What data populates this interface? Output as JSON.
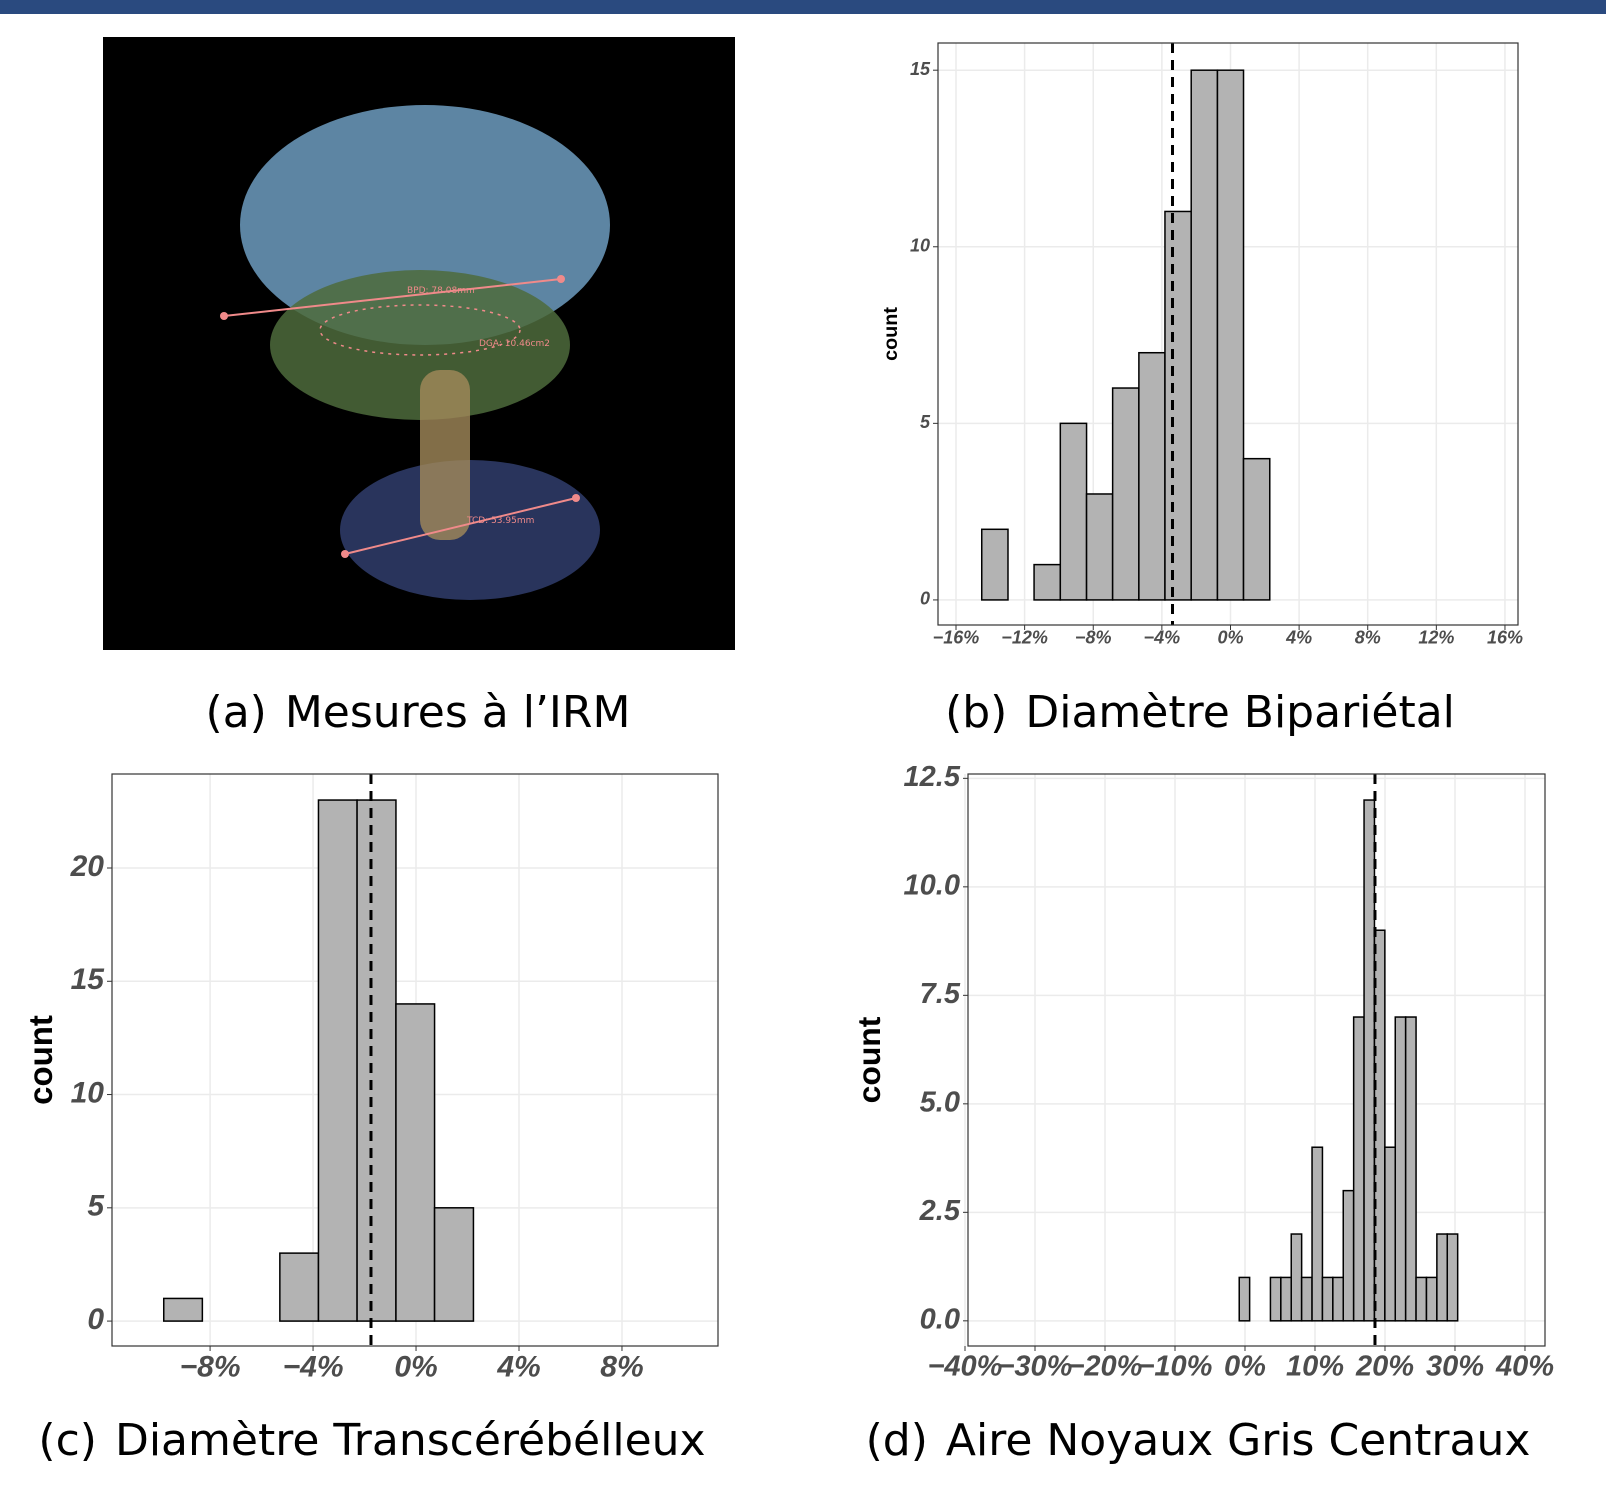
{
  "image_panel": {
    "caption_label": "(a)",
    "caption": "Mesures à l’IRM",
    "annotations": [
      "BPD: 78.08mm",
      "DGA: 10.46cm2",
      "TCD: 53.95mm"
    ]
  },
  "chart_data": [
    {
      "type": "histogram",
      "caption_label": "(b)",
      "caption": "Diamètre Bipariétal",
      "y_label": "count",
      "color": "#b3b3b3",
      "grid": true,
      "bins": [
        -14.5,
        -12.97,
        -11.45,
        -9.92,
        -8.39,
        -6.87,
        -5.34,
        -3.82,
        -2.29,
        -0.76,
        0.76,
        2.29,
        3.82,
        5.34,
        6.87,
        8.39,
        9.92,
        11.45,
        12.97,
        14.5
      ],
      "values": [
        2,
        0,
        1,
        5,
        3,
        6,
        7,
        11,
        15,
        15,
        4,
        0,
        0,
        0,
        0,
        0,
        0,
        0,
        0
      ],
      "vline": -3.38,
      "xlim": [
        -17.05,
        16.76
      ],
      "ylim": [
        -0.71,
        15.77
      ],
      "xticks": [
        {
          "value": -16,
          "label": "−16%"
        },
        {
          "value": -12,
          "label": "−12%"
        },
        {
          "value": -8,
          "label": "−8%"
        },
        {
          "value": -4,
          "label": "−4%"
        },
        {
          "value": 0,
          "label": "0%"
        },
        {
          "value": 4,
          "label": "4%"
        },
        {
          "value": 8,
          "label": "8%"
        },
        {
          "value": 12,
          "label": "12%"
        },
        {
          "value": 16,
          "label": "16%"
        }
      ],
      "yticks": [
        0,
        5,
        10,
        15
      ]
    },
    {
      "type": "histogram",
      "caption_label": "(c)",
      "caption": "Diamètre Transcérébélleux",
      "y_label": "count",
      "color": "#b3b3b3",
      "grid": true,
      "bins": [
        -9.8,
        -8.3,
        -6.79,
        -5.29,
        -3.79,
        -2.29,
        -0.78,
        0.72,
        2.23,
        3.73,
        5.23,
        6.73,
        8.24,
        9.74
      ],
      "values": [
        1,
        0,
        0,
        3,
        23,
        23,
        14,
        5,
        0,
        0,
        0,
        0,
        0
      ],
      "vline": -1.75,
      "xlim": [
        -11.81,
        11.73
      ],
      "ylim": [
        -1.1,
        24.15
      ],
      "xticks": [
        {
          "value": -8,
          "label": "−8%"
        },
        {
          "value": -4,
          "label": "−4%"
        },
        {
          "value": 0,
          "label": "0%"
        },
        {
          "value": 4,
          "label": "4%"
        },
        {
          "value": 8,
          "label": "8%"
        }
      ],
      "yticks": [
        0,
        5,
        10,
        15,
        20
      ]
    },
    {
      "type": "histogram",
      "caption_label": "(d)",
      "caption": "Aire Noyaux Gris Centraux",
      "y_label": "count",
      "color": "#b3b3b3",
      "grid": true,
      "bins": [
        -35,
        -33.514,
        -32.028,
        -30.542,
        -29.056,
        -27.57,
        -26.084,
        -24.598,
        -23.112,
        -21.626,
        -20.14,
        -18.654,
        -17.168,
        -15.682,
        -14.196,
        -12.71,
        -11.224,
        -9.738,
        -8.252,
        -6.766,
        -5.28,
        -3.794,
        -2.308,
        -0.822,
        0.664,
        2.15,
        3.636,
        5.122,
        6.608,
        8.094,
        9.58,
        11.066,
        12.552,
        14.038,
        15.524,
        17.01,
        18.496,
        19.982,
        21.468,
        22.954,
        24.44,
        25.926,
        27.412,
        28.898,
        30.384,
        31.87,
        33.356,
        34.842,
        36.328,
        37.814
      ],
      "values": [
        0,
        0,
        0,
        0,
        0,
        0,
        0,
        0,
        0,
        0,
        0,
        0,
        0,
        0,
        0,
        0,
        0,
        0,
        0,
        0,
        0,
        0,
        0,
        1,
        0,
        0,
        1,
        1,
        2,
        1,
        4,
        1,
        1,
        3,
        7,
        12,
        9,
        4,
        7,
        7,
        1,
        1,
        2,
        2,
        0,
        0,
        0,
        0,
        0
      ],
      "vline": 18.57,
      "xlim": [
        -39.57,
        42.86
      ],
      "ylim": [
        -0.58,
        12.6
      ],
      "xticks": [
        {
          "value": -40,
          "label": "−40%"
        },
        {
          "value": -30,
          "label": "−30%"
        },
        {
          "value": -20,
          "label": "−20%"
        },
        {
          "value": -10,
          "label": "−10%"
        },
        {
          "value": 0,
          "label": "0%"
        },
        {
          "value": 10,
          "label": "10%"
        },
        {
          "value": 20,
          "label": "20%"
        },
        {
          "value": 30,
          "label": "30%"
        },
        {
          "value": 40,
          "label": "40%"
        }
      ],
      "yticks": [
        {
          "value": 0,
          "label": "0.0"
        },
        2.5,
        {
          "value": 5,
          "label": "5.0"
        },
        7.5,
        {
          "value": 10,
          "label": "10.0"
        },
        12.5
      ]
    }
  ]
}
